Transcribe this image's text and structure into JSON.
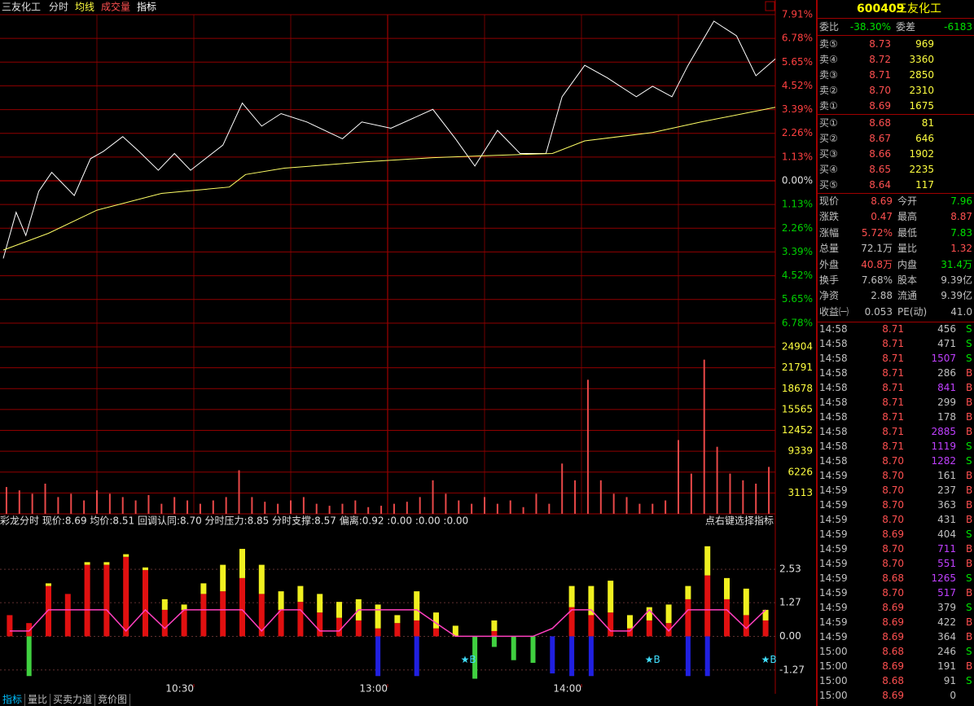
{
  "toolbar": {
    "stock": "三友化工",
    "items": [
      {
        "text": "分时",
        "color": "#e0e0e0"
      },
      {
        "text": "均线",
        "color": "#ffff40"
      },
      {
        "text": "成交量",
        "color": "#ff5050"
      },
      {
        "text": "指标",
        "color": "#ffffff"
      }
    ]
  },
  "chart_data": [
    {
      "type": "line",
      "xlim": [
        0,
        240
      ],
      "ylim": [
        -7.91,
        7.91
      ],
      "yticks": [
        {
          "value": 7.91,
          "label": "7.91%"
        },
        {
          "value": 6.78,
          "label": "6.78%"
        },
        {
          "value": 5.65,
          "label": "5.65%"
        },
        {
          "value": 4.52,
          "label": "4.52%"
        },
        {
          "value": 3.39,
          "label": "3.39%"
        },
        {
          "value": 2.26,
          "label": "2.26%"
        },
        {
          "value": 1.13,
          "label": "1.13%"
        },
        {
          "value": 0,
          "label": "0.00%"
        },
        {
          "value": -1.13,
          "label": "1.13%"
        },
        {
          "value": -2.26,
          "label": "2.26%"
        },
        {
          "value": -3.39,
          "label": "3.39%"
        },
        {
          "value": -4.52,
          "label": "4.52%"
        },
        {
          "value": -5.65,
          "label": "5.65%"
        },
        {
          "value": -6.78,
          "label": "6.78%"
        }
      ],
      "series": [
        {
          "color": "#ffffff",
          "x": [
            1,
            5,
            8,
            12,
            16,
            23,
            28,
            32,
            38,
            43,
            49,
            54,
            59,
            69,
            75,
            81,
            87,
            95,
            106,
            112,
            121,
            134,
            141,
            147,
            154,
            161,
            169,
            174,
            181,
            188,
            197,
            202,
            208,
            213,
            221,
            228,
            234,
            240
          ],
          "values": [
            -3.7,
            -1.5,
            -2.6,
            -0.5,
            0.4,
            -0.7,
            1.05,
            1.4,
            2.1,
            1.4,
            0.5,
            1.3,
            0.5,
            1.7,
            3.7,
            2.6,
            3.2,
            2.8,
            2.0,
            2.8,
            2.5,
            3.4,
            2.0,
            0.7,
            2.4,
            1.3,
            1.3,
            4.0,
            5.5,
            4.9,
            4.0,
            4.5,
            4.0,
            5.5,
            7.6,
            6.9,
            5.0,
            5.8
          ]
        },
        {
          "color": "#ffff66",
          "x": [
            1,
            15,
            30,
            50,
            71,
            76,
            88,
            113,
            134,
            151,
            171,
            181,
            202,
            217,
            240
          ],
          "values": [
            -3.3,
            -2.5,
            -1.4,
            -0.6,
            -0.3,
            0.3,
            0.6,
            0.9,
            1.1,
            1.2,
            1.3,
            1.9,
            2.3,
            2.8,
            3.5
          ]
        }
      ]
    },
    {
      "type": "bar",
      "xlim": [
        0,
        240
      ],
      "ylim": [
        0,
        24904
      ],
      "color": "#e84848",
      "yticks": [
        3113,
        6226,
        9339,
        12452,
        15565,
        18678,
        21791,
        24904
      ],
      "x": [
        2,
        6,
        10,
        14,
        18,
        22,
        26,
        30,
        34,
        38,
        42,
        46,
        50,
        54,
        58,
        62,
        66,
        70,
        74,
        78,
        82,
        86,
        90,
        94,
        98,
        102,
        106,
        110,
        114,
        118,
        122,
        126,
        130,
        134,
        138,
        142,
        146,
        150,
        154,
        158,
        162,
        166,
        170,
        174,
        178,
        182,
        186,
        190,
        194,
        198,
        202,
        206,
        210,
        214,
        218,
        222,
        226,
        230,
        234,
        238
      ],
      "values": [
        4000,
        3500,
        3000,
        4500,
        2500,
        3000,
        2000,
        3500,
        3000,
        2500,
        2000,
        2800,
        1500,
        2500,
        2000,
        1500,
        2000,
        2500,
        6500,
        2500,
        1800,
        1500,
        2000,
        2500,
        1500,
        1200,
        1500,
        2000,
        1000,
        1200,
        1500,
        1800,
        2500,
        5000,
        3000,
        2000,
        1500,
        2500,
        1500,
        2000,
        1000,
        3000,
        1500,
        7500,
        5000,
        20000,
        5000,
        3000,
        2500,
        1500,
        1500,
        2000,
        11000,
        6000,
        23000,
        10000,
        6000,
        5000,
        4500,
        7000
      ]
    },
    {
      "type": "indicator",
      "title": "彩龙分时  现价:8.69  均价:8.51  回调认同:8.70  分时压力:8.85  分时支撑:8.57  偏离:0.92  :0.00  :0.00  :0.00",
      "note": "点右键选择指标",
      "xlim": [
        0,
        240
      ],
      "ylim": [
        -1.8,
        4.04
      ],
      "yticks": [
        2.53,
        1.27,
        {
          "value": 0,
          "label": "0.00"
        },
        -1.27
      ],
      "xticks": [
        {
          "value": 60,
          "label": "10:30"
        },
        {
          "value": 120,
          "label": "13:00"
        },
        {
          "value": 180,
          "label": "14:00"
        }
      ],
      "x": [
        3,
        9,
        15,
        21,
        27,
        33,
        39,
        45,
        51,
        57,
        63,
        69,
        75,
        81,
        87,
        93,
        99,
        105,
        111,
        117,
        123,
        129,
        135,
        141,
        147,
        153,
        159,
        165,
        171,
        177,
        183,
        189,
        195,
        201,
        207,
        213,
        219,
        225,
        231,
        237
      ],
      "series": [
        {
          "color": "#e01010",
          "values": [
            0.8,
            0.5,
            1.9,
            1.6,
            2.7,
            2.7,
            3.0,
            2.5,
            1.0,
            1.0,
            1.6,
            1.7,
            2.2,
            1.6,
            1.0,
            1.3,
            0.9,
            0.7,
            0.6,
            0.3,
            0.5,
            0.6,
            0.3,
            0,
            0,
            0.2,
            0,
            0,
            0,
            1.1,
            0.8,
            0.9,
            0.3,
            0.6,
            0.5,
            1.4,
            2.3,
            1.4,
            0.8,
            0.6
          ]
        },
        {
          "color": "#f0f020",
          "values": [
            0,
            0,
            0.1,
            0,
            0.1,
            0.1,
            0.1,
            0.1,
            0.4,
            0.2,
            0.4,
            1.0,
            1.1,
            1.1,
            0.7,
            0.6,
            0.7,
            0.6,
            0.8,
            0.9,
            0.3,
            1.1,
            0.6,
            0.4,
            0,
            0.4,
            0,
            0,
            0,
            0.8,
            1.1,
            1.2,
            0.5,
            0.5,
            0.7,
            0.5,
            1.1,
            0.8,
            1.0,
            0.4
          ]
        },
        {
          "color": "#2020e0",
          "values": [
            null,
            null,
            null,
            null,
            null,
            null,
            null,
            null,
            null,
            null,
            null,
            null,
            null,
            null,
            null,
            null,
            null,
            null,
            null,
            -1.5,
            null,
            -1.5,
            null,
            null,
            null,
            null,
            null,
            null,
            -1.4,
            -1.5,
            -1.5,
            null,
            null,
            null,
            null,
            -1.5,
            -1.5,
            null,
            null,
            null
          ]
        },
        {
          "color": "#40d040",
          "values": [
            null,
            -1.5,
            null,
            null,
            null,
            null,
            null,
            null,
            null,
            null,
            null,
            null,
            null,
            null,
            null,
            null,
            null,
            null,
            null,
            null,
            null,
            null,
            null,
            null,
            -1.6,
            -0.4,
            -0.9,
            -1.0,
            null,
            null,
            null,
            null,
            null,
            null,
            null,
            null,
            null,
            null,
            null,
            null
          ]
        },
        {
          "color": "#ff40c0",
          "line": true,
          "values": [
            0.2,
            0.2,
            1.0,
            1.0,
            1.0,
            1.0,
            0.2,
            1.0,
            0.3,
            1.0,
            1.0,
            1.0,
            1.0,
            0.2,
            1.0,
            1.0,
            0.2,
            0.2,
            1.0,
            1.0,
            1.0,
            1.0,
            0.5,
            0,
            0,
            0,
            0,
            0,
            0.3,
            1.0,
            1.0,
            0.2,
            0.2,
            1.0,
            0.2,
            1.0,
            1.0,
            1.0,
            0.3,
            1.0
          ]
        }
      ],
      "annotations": [
        {
          "x": 145,
          "y": -0.9,
          "text": "★B"
        },
        {
          "x": 202,
          "y": -0.9,
          "text": "★B"
        },
        {
          "x": 238,
          "y": -0.9,
          "text": "★B"
        }
      ]
    }
  ],
  "quote": {
    "code": "600409",
    "name": "三友化工",
    "ratio": [
      {
        "label": "委比",
        "value": "-38.30%"
      },
      {
        "label": "委差",
        "value": "-6183"
      }
    ],
    "asks": [
      {
        "label": "卖⑤",
        "price": "8.73",
        "volume": "969"
      },
      {
        "label": "卖④",
        "price": "8.72",
        "volume": "3360"
      },
      {
        "label": "卖③",
        "price": "8.71",
        "volume": "2850"
      },
      {
        "label": "卖②",
        "price": "8.70",
        "volume": "2310"
      },
      {
        "label": "卖①",
        "price": "8.69",
        "volume": "1675"
      }
    ],
    "bids": [
      {
        "label": "买①",
        "price": "8.68",
        "volume": "81"
      },
      {
        "label": "买②",
        "price": "8.67",
        "volume": "646"
      },
      {
        "label": "买③",
        "price": "8.66",
        "volume": "1902"
      },
      {
        "label": "买④",
        "price": "8.65",
        "volume": "2235"
      },
      {
        "label": "买⑤",
        "price": "8.64",
        "volume": "117"
      }
    ],
    "stats": [
      [
        {
          "label": "现价",
          "value": "8.69",
          "color": "#ff5050"
        },
        {
          "label": "今开",
          "value": "7.96",
          "color": "#00e000"
        }
      ],
      [
        {
          "label": "涨跌",
          "value": "0.47",
          "color": "#ff5050"
        },
        {
          "label": "最高",
          "value": "8.87",
          "color": "#ff5050"
        }
      ],
      [
        {
          "label": "涨幅",
          "value": "5.72%",
          "color": "#ff5050"
        },
        {
          "label": "最低",
          "value": "7.83",
          "color": "#00e000"
        }
      ],
      [
        {
          "label": "总量",
          "value": "72.1万",
          "color": "#c0c0c0"
        },
        {
          "label": "量比",
          "value": "1.32",
          "color": "#ff5050"
        }
      ],
      [
        {
          "label": "外盘",
          "value": "40.8万",
          "color": "#ff5050"
        },
        {
          "label": "内盘",
          "value": "31.4万",
          "color": "#00e000"
        }
      ],
      [
        {
          "label": "换手",
          "value": "7.68%",
          "color": "#c0c0c0"
        },
        {
          "label": "股本",
          "value": "9.39亿",
          "color": "#c0c0c0"
        }
      ],
      [
        {
          "label": "净资",
          "value": "2.88",
          "color": "#c0c0c0"
        },
        {
          "label": "流通",
          "value": "9.39亿",
          "color": "#c0c0c0"
        }
      ],
      [
        {
          "label": "收益㈠",
          "value": "0.053",
          "color": "#c0c0c0"
        },
        {
          "label": "PE(动)",
          "value": "41.0",
          "color": "#c0c0c0"
        }
      ]
    ],
    "trades": [
      {
        "time": "14:58",
        "price": "8.71",
        "volume": "456",
        "side": "S",
        "color": "#c0c0c0"
      },
      {
        "time": "14:58",
        "price": "8.71",
        "volume": "471",
        "side": "S",
        "color": "#c0c0c0"
      },
      {
        "time": "14:58",
        "price": "8.71",
        "volume": "1507",
        "side": "S",
        "color": "#c040ff"
      },
      {
        "time": "14:58",
        "price": "8.71",
        "volume": "286",
        "side": "B",
        "color": "#c0c0c0"
      },
      {
        "time": "14:58",
        "price": "8.71",
        "volume": "841",
        "side": "B",
        "color": "#c040ff"
      },
      {
        "time": "14:58",
        "price": "8.71",
        "volume": "299",
        "side": "B",
        "color": "#c0c0c0"
      },
      {
        "time": "14:58",
        "price": "8.71",
        "volume": "178",
        "side": "B",
        "color": "#c0c0c0"
      },
      {
        "time": "14:58",
        "price": "8.71",
        "volume": "2885",
        "side": "B",
        "color": "#c040ff"
      },
      {
        "time": "14:58",
        "price": "8.71",
        "volume": "1119",
        "side": "S",
        "color": "#c040ff"
      },
      {
        "time": "14:58",
        "price": "8.70",
        "volume": "1282",
        "side": "S",
        "color": "#c040ff"
      },
      {
        "time": "14:59",
        "price": "8.70",
        "volume": "161",
        "side": "B",
        "color": "#c0c0c0"
      },
      {
        "time": "14:59",
        "price": "8.70",
        "volume": "237",
        "side": "B",
        "color": "#c0c0c0"
      },
      {
        "time": "14:59",
        "price": "8.70",
        "volume": "363",
        "side": "B",
        "color": "#c0c0c0"
      },
      {
        "time": "14:59",
        "price": "8.70",
        "volume": "431",
        "side": "B",
        "color": "#c0c0c0"
      },
      {
        "time": "14:59",
        "price": "8.69",
        "volume": "404",
        "side": "S",
        "color": "#c0c0c0"
      },
      {
        "time": "14:59",
        "price": "8.70",
        "volume": "711",
        "side": "B",
        "color": "#c040ff"
      },
      {
        "time": "14:59",
        "price": "8.70",
        "volume": "551",
        "side": "B",
        "color": "#c040ff"
      },
      {
        "time": "14:59",
        "price": "8.68",
        "volume": "1265",
        "side": "S",
        "color": "#c040ff"
      },
      {
        "time": "14:59",
        "price": "8.70",
        "volume": "517",
        "side": "B",
        "color": "#c040ff"
      },
      {
        "time": "14:59",
        "price": "8.69",
        "volume": "379",
        "side": "S",
        "color": "#c0c0c0"
      },
      {
        "time": "14:59",
        "price": "8.69",
        "volume": "422",
        "side": "B",
        "color": "#c0c0c0"
      },
      {
        "time": "14:59",
        "price": "8.69",
        "volume": "364",
        "side": "B",
        "color": "#c0c0c0"
      },
      {
        "time": "15:00",
        "price": "8.68",
        "volume": "246",
        "side": "S",
        "color": "#c0c0c0"
      },
      {
        "time": "15:00",
        "price": "8.69",
        "volume": "191",
        "side": "B",
        "color": "#c0c0c0"
      },
      {
        "time": "15:00",
        "price": "8.68",
        "volume": "91",
        "side": "S",
        "color": "#c0c0c0"
      },
      {
        "time": "15:00",
        "price": "8.69",
        "volume": "0",
        "color": "#c0c0c0"
      }
    ]
  },
  "tabs": [
    "指标",
    "量比",
    "买卖力道",
    "竞价图"
  ]
}
